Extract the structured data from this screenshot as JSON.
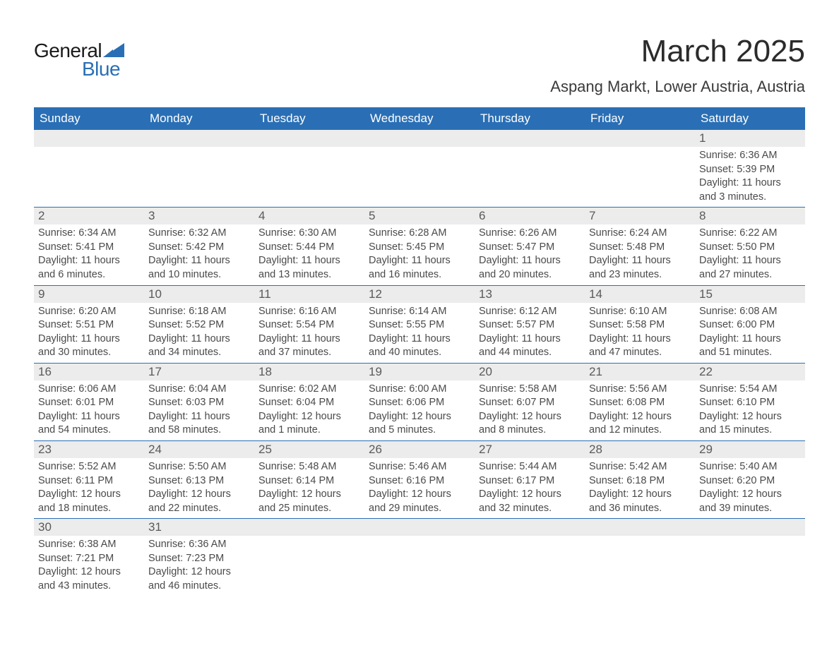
{
  "brand": {
    "text_general": "General",
    "text_blue": "Blue",
    "shape_color": "#2a6fb5",
    "text_color_dark": "#1a1a1a"
  },
  "title": "March 2025",
  "subtitle": "Aspang Markt, Lower Austria, Austria",
  "colors": {
    "header_bg": "#2a6fb5",
    "header_text": "#ffffff",
    "daynum_bg": "#ececec",
    "body_text": "#4a4a4a",
    "row_divider": "#2a6fb5",
    "page_bg": "#ffffff"
  },
  "typography": {
    "title_fontsize_pt": 33,
    "subtitle_fontsize_pt": 17,
    "header_fontsize_pt": 13,
    "daynum_fontsize_pt": 13,
    "body_fontsize_pt": 11,
    "font_family": "Arial"
  },
  "calendar": {
    "type": "table",
    "columns": [
      "Sunday",
      "Monday",
      "Tuesday",
      "Wednesday",
      "Thursday",
      "Friday",
      "Saturday"
    ],
    "weeks": [
      [
        null,
        null,
        null,
        null,
        null,
        null,
        {
          "n": "1",
          "sunrise": "Sunrise: 6:36 AM",
          "sunset": "Sunset: 5:39 PM",
          "day1": "Daylight: 11 hours",
          "day2": "and 3 minutes."
        }
      ],
      [
        {
          "n": "2",
          "sunrise": "Sunrise: 6:34 AM",
          "sunset": "Sunset: 5:41 PM",
          "day1": "Daylight: 11 hours",
          "day2": "and 6 minutes."
        },
        {
          "n": "3",
          "sunrise": "Sunrise: 6:32 AM",
          "sunset": "Sunset: 5:42 PM",
          "day1": "Daylight: 11 hours",
          "day2": "and 10 minutes."
        },
        {
          "n": "4",
          "sunrise": "Sunrise: 6:30 AM",
          "sunset": "Sunset: 5:44 PM",
          "day1": "Daylight: 11 hours",
          "day2": "and 13 minutes."
        },
        {
          "n": "5",
          "sunrise": "Sunrise: 6:28 AM",
          "sunset": "Sunset: 5:45 PM",
          "day1": "Daylight: 11 hours",
          "day2": "and 16 minutes."
        },
        {
          "n": "6",
          "sunrise": "Sunrise: 6:26 AM",
          "sunset": "Sunset: 5:47 PM",
          "day1": "Daylight: 11 hours",
          "day2": "and 20 minutes."
        },
        {
          "n": "7",
          "sunrise": "Sunrise: 6:24 AM",
          "sunset": "Sunset: 5:48 PM",
          "day1": "Daylight: 11 hours",
          "day2": "and 23 minutes."
        },
        {
          "n": "8",
          "sunrise": "Sunrise: 6:22 AM",
          "sunset": "Sunset: 5:50 PM",
          "day1": "Daylight: 11 hours",
          "day2": "and 27 minutes."
        }
      ],
      [
        {
          "n": "9",
          "sunrise": "Sunrise: 6:20 AM",
          "sunset": "Sunset: 5:51 PM",
          "day1": "Daylight: 11 hours",
          "day2": "and 30 minutes."
        },
        {
          "n": "10",
          "sunrise": "Sunrise: 6:18 AM",
          "sunset": "Sunset: 5:52 PM",
          "day1": "Daylight: 11 hours",
          "day2": "and 34 minutes."
        },
        {
          "n": "11",
          "sunrise": "Sunrise: 6:16 AM",
          "sunset": "Sunset: 5:54 PM",
          "day1": "Daylight: 11 hours",
          "day2": "and 37 minutes."
        },
        {
          "n": "12",
          "sunrise": "Sunrise: 6:14 AM",
          "sunset": "Sunset: 5:55 PM",
          "day1": "Daylight: 11 hours",
          "day2": "and 40 minutes."
        },
        {
          "n": "13",
          "sunrise": "Sunrise: 6:12 AM",
          "sunset": "Sunset: 5:57 PM",
          "day1": "Daylight: 11 hours",
          "day2": "and 44 minutes."
        },
        {
          "n": "14",
          "sunrise": "Sunrise: 6:10 AM",
          "sunset": "Sunset: 5:58 PM",
          "day1": "Daylight: 11 hours",
          "day2": "and 47 minutes."
        },
        {
          "n": "15",
          "sunrise": "Sunrise: 6:08 AM",
          "sunset": "Sunset: 6:00 PM",
          "day1": "Daylight: 11 hours",
          "day2": "and 51 minutes."
        }
      ],
      [
        {
          "n": "16",
          "sunrise": "Sunrise: 6:06 AM",
          "sunset": "Sunset: 6:01 PM",
          "day1": "Daylight: 11 hours",
          "day2": "and 54 minutes."
        },
        {
          "n": "17",
          "sunrise": "Sunrise: 6:04 AM",
          "sunset": "Sunset: 6:03 PM",
          "day1": "Daylight: 11 hours",
          "day2": "and 58 minutes."
        },
        {
          "n": "18",
          "sunrise": "Sunrise: 6:02 AM",
          "sunset": "Sunset: 6:04 PM",
          "day1": "Daylight: 12 hours",
          "day2": "and 1 minute."
        },
        {
          "n": "19",
          "sunrise": "Sunrise: 6:00 AM",
          "sunset": "Sunset: 6:06 PM",
          "day1": "Daylight: 12 hours",
          "day2": "and 5 minutes."
        },
        {
          "n": "20",
          "sunrise": "Sunrise: 5:58 AM",
          "sunset": "Sunset: 6:07 PM",
          "day1": "Daylight: 12 hours",
          "day2": "and 8 minutes."
        },
        {
          "n": "21",
          "sunrise": "Sunrise: 5:56 AM",
          "sunset": "Sunset: 6:08 PM",
          "day1": "Daylight: 12 hours",
          "day2": "and 12 minutes."
        },
        {
          "n": "22",
          "sunrise": "Sunrise: 5:54 AM",
          "sunset": "Sunset: 6:10 PM",
          "day1": "Daylight: 12 hours",
          "day2": "and 15 minutes."
        }
      ],
      [
        {
          "n": "23",
          "sunrise": "Sunrise: 5:52 AM",
          "sunset": "Sunset: 6:11 PM",
          "day1": "Daylight: 12 hours",
          "day2": "and 18 minutes."
        },
        {
          "n": "24",
          "sunrise": "Sunrise: 5:50 AM",
          "sunset": "Sunset: 6:13 PM",
          "day1": "Daylight: 12 hours",
          "day2": "and 22 minutes."
        },
        {
          "n": "25",
          "sunrise": "Sunrise: 5:48 AM",
          "sunset": "Sunset: 6:14 PM",
          "day1": "Daylight: 12 hours",
          "day2": "and 25 minutes."
        },
        {
          "n": "26",
          "sunrise": "Sunrise: 5:46 AM",
          "sunset": "Sunset: 6:16 PM",
          "day1": "Daylight: 12 hours",
          "day2": "and 29 minutes."
        },
        {
          "n": "27",
          "sunrise": "Sunrise: 5:44 AM",
          "sunset": "Sunset: 6:17 PM",
          "day1": "Daylight: 12 hours",
          "day2": "and 32 minutes."
        },
        {
          "n": "28",
          "sunrise": "Sunrise: 5:42 AM",
          "sunset": "Sunset: 6:18 PM",
          "day1": "Daylight: 12 hours",
          "day2": "and 36 minutes."
        },
        {
          "n": "29",
          "sunrise": "Sunrise: 5:40 AM",
          "sunset": "Sunset: 6:20 PM",
          "day1": "Daylight: 12 hours",
          "day2": "and 39 minutes."
        }
      ],
      [
        {
          "n": "30",
          "sunrise": "Sunrise: 6:38 AM",
          "sunset": "Sunset: 7:21 PM",
          "day1": "Daylight: 12 hours",
          "day2": "and 43 minutes."
        },
        {
          "n": "31",
          "sunrise": "Sunrise: 6:36 AM",
          "sunset": "Sunset: 7:23 PM",
          "day1": "Daylight: 12 hours",
          "day2": "and 46 minutes."
        },
        null,
        null,
        null,
        null,
        null
      ]
    ]
  }
}
